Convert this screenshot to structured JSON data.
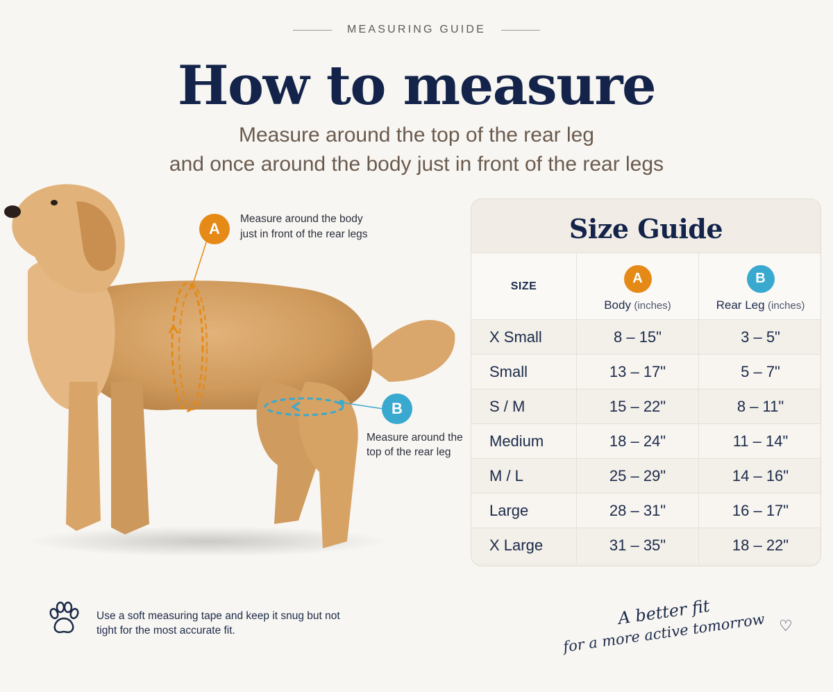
{
  "header": {
    "eyebrow": "MEASURING GUIDE",
    "title": "How to measure",
    "subtitle_line1": "Measure around the top of the rear leg",
    "subtitle_line2": "and once around the body just in front of the rear legs"
  },
  "callouts": {
    "a": {
      "badge": "A",
      "text": "Measure around the body just in front of the rear legs",
      "color": "#e58a16"
    },
    "b": {
      "badge": "B",
      "text": "Measure around the top of the rear leg",
      "color": "#3aa9cf"
    }
  },
  "size_guide": {
    "title": "Size Guide",
    "headers": {
      "size": "SIZE",
      "a_badge": "A",
      "a_label": "Body",
      "a_unit": "(inches)",
      "b_badge": "B",
      "b_label": "Rear Leg",
      "b_unit": "(inches)"
    },
    "rows": [
      {
        "size": "X Small",
        "body": "8 – 15\"",
        "leg": "3 – 5\""
      },
      {
        "size": "Small",
        "body": "13 – 17\"",
        "leg": "5 – 7\""
      },
      {
        "size": "S / M",
        "body": "15 – 22\"",
        "leg": "8 – 11\""
      },
      {
        "size": "Medium",
        "body": "18 – 24\"",
        "leg": "11 – 14\""
      },
      {
        "size": "M / L",
        "body": "25 – 29\"",
        "leg": "14 – 16\""
      },
      {
        "size": "Large",
        "body": "28 – 31\"",
        "leg": "16 – 17\""
      },
      {
        "size": "X Large",
        "body": "31 – 35\"",
        "leg": "18 – 22\""
      }
    ]
  },
  "footer": {
    "tip_icon": "paw-icon",
    "tip": "Use a soft measuring tape and keep it snug but not tight for the most accurate fit.",
    "tagline_line1": "A better fit",
    "tagline_line2": "for a more active tomorrow",
    "tagline_icon": "heart-icon"
  }
}
